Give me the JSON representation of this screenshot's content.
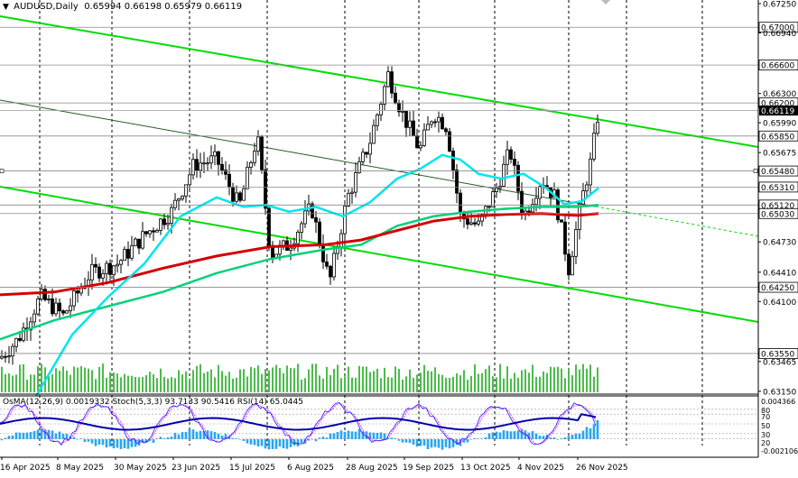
{
  "header": {
    "arrow": "▼",
    "symbol": "AUDUSD,Daily",
    "ohlc": "0.65994 0.66198 0.65979 0.66119"
  },
  "price_axis": {
    "ticks": [
      "0.67250",
      "0.66940",
      "0.66300",
      "0.65990",
      "0.65675",
      "0.64730",
      "0.64410",
      "0.64100",
      "0.63465",
      "0.63150"
    ],
    "boxed_levels": [
      "0.67000",
      "0.66600",
      "0.66200",
      "0.65850",
      "0.65480",
      "0.65310",
      "0.65120",
      "0.65030",
      "0.64250",
      "0.63550"
    ],
    "current_price": "0.66119"
  },
  "indicator": {
    "label": "OsMA(12,26,9) 0.0019332  Stoch(5,3,3) 93.7133 90.5416  RSI(14) 65.0445",
    "axis_ticks": [
      "0.004366",
      "80",
      "70",
      "50",
      "30",
      "20",
      "-0.002106"
    ]
  },
  "time_axis": [
    "16 Apr 2025",
    "8 May 2025",
    "30 May 2025",
    "23 Jun 2025",
    "15 Jul 2025",
    "6 Aug 2025",
    "28 Aug 2025",
    "19 Sep 2025",
    "13 Oct 2025",
    "4 Nov 2025",
    "26 Nov 2025"
  ],
  "colors": {
    "candles": "#000000",
    "ma_fast": "#00e5ee",
    "ma_mid": "#00d27a",
    "ma_slow": "#d40000",
    "channel": "#00dd00",
    "osma_bars": "#27a6f2",
    "rsi": "#0000aa",
    "stoch_main": "#1a1aff",
    "stoch_signal": "#ff00ff"
  }
}
